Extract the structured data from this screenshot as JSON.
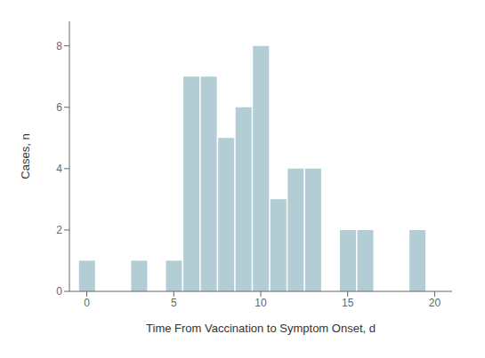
{
  "chart_data": {
    "type": "bar",
    "x_label": "Time From Vaccination to Symptom Onset, d",
    "y_label": "Cases, n",
    "x": [
      0,
      3,
      5,
      6,
      7,
      8,
      9,
      10,
      11,
      12,
      13,
      15,
      16,
      19
    ],
    "values": [
      1,
      1,
      1,
      7,
      7,
      5,
      6,
      8,
      3,
      4,
      4,
      2,
      2,
      2
    ],
    "color": "#b2cdd4",
    "xlim": [
      -1,
      21
    ],
    "xticks": [
      0,
      5,
      10,
      15,
      20
    ],
    "ylim": [
      0,
      8.8
    ],
    "yticks": [
      0,
      2,
      4,
      6,
      8
    ],
    "grid": false
  }
}
